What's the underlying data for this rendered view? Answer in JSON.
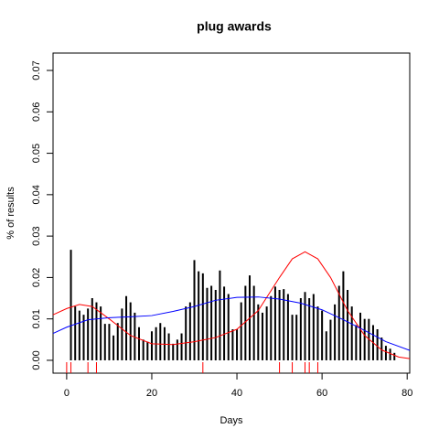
{
  "chart_data": {
    "type": "bar",
    "title": "plug awards",
    "xlabel": "Days",
    "ylabel": "% of results",
    "x": [
      1,
      2,
      3,
      4,
      5,
      6,
      7,
      8,
      9,
      10,
      11,
      12,
      13,
      14,
      15,
      16,
      17,
      18,
      19,
      20,
      21,
      22,
      23,
      24,
      25,
      26,
      27,
      28,
      29,
      30,
      31,
      32,
      33,
      34,
      35,
      36,
      37,
      38,
      39,
      40,
      41,
      42,
      43,
      44,
      45,
      46,
      47,
      48,
      49,
      50,
      51,
      52,
      53,
      54,
      55,
      56,
      57,
      58,
      59,
      60,
      61,
      62,
      63,
      64,
      65,
      66,
      67,
      68,
      69,
      70,
      71,
      72,
      73,
      74,
      75,
      76,
      77
    ],
    "values": [
      0.0267,
      0.013,
      0.012,
      0.011,
      0.0125,
      0.015,
      0.014,
      0.013,
      0.0088,
      0.0088,
      0.006,
      0.009,
      0.0125,
      0.0155,
      0.014,
      0.0115,
      0.008,
      0.005,
      0.0045,
      0.007,
      0.008,
      0.009,
      0.008,
      0.0065,
      0.004,
      0.005,
      0.0065,
      0.013,
      0.014,
      0.0242,
      0.0215,
      0.021,
      0.0175,
      0.018,
      0.017,
      0.0217,
      0.0178,
      0.016,
      0.0075,
      0.0075,
      0.014,
      0.018,
      0.0205,
      0.018,
      0.0135,
      0.0115,
      0.013,
      0.0155,
      0.0178,
      0.017,
      0.0172,
      0.016,
      0.011,
      0.011,
      0.015,
      0.0165,
      0.015,
      0.016,
      0.013,
      0.012,
      0.007,
      0.0098,
      0.0135,
      0.018,
      0.0215,
      0.017,
      0.013,
      0.0085,
      0.0115,
      0.01,
      0.01,
      0.0085,
      0.0075,
      0.0055,
      0.0035,
      0.0028,
      0.0018
    ],
    "color": "#000000",
    "curves": [
      {
        "color": "#ff0000",
        "x": [
          -3.2,
          0,
          3,
          6,
          10,
          15,
          20,
          25,
          30,
          35,
          40,
          45,
          50,
          53,
          56,
          59,
          62,
          66,
          70,
          74,
          78,
          80.6
        ],
        "values": [
          0.011,
          0.0125,
          0.0135,
          0.013,
          0.01,
          0.006,
          0.004,
          0.0038,
          0.0045,
          0.0055,
          0.0075,
          0.012,
          0.02,
          0.0245,
          0.0262,
          0.0245,
          0.02,
          0.012,
          0.006,
          0.0025,
          0.0008,
          0.0004
        ]
      },
      {
        "color": "#0000ff",
        "x": [
          -3.2,
          0,
          5,
          10,
          15,
          20,
          25,
          30,
          35,
          40,
          45,
          50,
          55,
          60,
          65,
          70,
          75,
          80.6
        ],
        "values": [
          0.0065,
          0.008,
          0.0098,
          0.0103,
          0.0105,
          0.0108,
          0.0118,
          0.013,
          0.0145,
          0.0152,
          0.0153,
          0.0148,
          0.0138,
          0.0122,
          0.0098,
          0.0072,
          0.0045,
          0.0024
        ]
      }
    ],
    "rug": [
      0,
      1,
      5,
      7,
      32,
      50,
      53,
      56,
      57,
      59
    ],
    "rug_color": "#ff0000",
    "xlim": [
      -3.2,
      80.6
    ],
    "ylim": [
      -0.0031,
      0.0742
    ],
    "xticks": [
      0,
      20,
      40,
      60,
      80
    ],
    "yticks": [
      {
        "value": 0,
        "label": "0.00"
      },
      {
        "value": 0.01,
        "label": "0.01"
      },
      {
        "value": 0.02,
        "label": "0.02"
      },
      {
        "value": 0.03,
        "label": "0.03"
      },
      {
        "value": 0.04,
        "label": "0.04"
      },
      {
        "value": 0.05,
        "label": "0.05"
      },
      {
        "value": 0.06,
        "label": "0.06"
      },
      {
        "value": 0.07,
        "label": "0.07"
      }
    ]
  }
}
